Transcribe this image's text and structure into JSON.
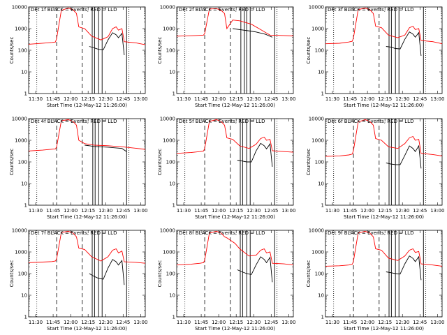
{
  "chart_data": {
    "type": "line",
    "xlabel": "Start Time (12-May-12 11:26:00)",
    "ylabel": "Counts/sec",
    "x_ticks": [
      "11:30",
      "11:45",
      "12:00",
      "12:15",
      "12:30",
      "12:45",
      "13:00"
    ],
    "x_tick_values": [
      30,
      45,
      60,
      75,
      90,
      105,
      120
    ],
    "xlim": [
      24,
      124
    ],
    "ylim": [
      1,
      10000
    ],
    "y_scale": "log",
    "y_ticks": [
      "1",
      "10",
      "100",
      "1000",
      "10000"
    ],
    "y_tick_values": [
      1,
      10,
      100,
      1000,
      10000
    ],
    "series_colors": {
      "events": "#000000",
      "lld": "#ff0000"
    },
    "panels": [
      {
        "title": "Det 1f BLACK = Events, RED = LLD",
        "dotted": [
          31,
          110
        ],
        "dashed": [
          48,
          70
        ],
        "solid": [
          78.5,
          80.5,
          84,
          87,
          108
        ],
        "lld": [
          [
            24,
            190
          ],
          [
            30,
            200
          ],
          [
            38,
            215
          ],
          [
            44,
            230
          ],
          [
            47,
            240
          ],
          [
            48,
            350
          ],
          [
            52,
            7000
          ],
          [
            58,
            9000
          ],
          [
            62,
            7500
          ],
          [
            65,
            5000
          ],
          [
            67,
            1200
          ],
          [
            72,
            1000
          ],
          [
            78,
            450
          ],
          [
            86,
            300
          ],
          [
            92,
            420
          ],
          [
            96,
            1000
          ],
          [
            99,
            1200
          ],
          [
            101,
            850
          ],
          [
            104,
            1000
          ],
          [
            106,
            250
          ],
          [
            116,
            220
          ],
          [
            124,
            180
          ]
        ],
        "events": [
          [
            76,
            150
          ],
          [
            80,
            130
          ],
          [
            84,
            110
          ],
          [
            88,
            105
          ],
          [
            92,
            300
          ],
          [
            96,
            650
          ],
          [
            99,
            520
          ],
          [
            101,
            380
          ],
          [
            104,
            600
          ],
          [
            106,
            60
          ]
        ]
      },
      {
        "title": "Det 2f BLACK = Events, RED = LLD",
        "dotted": [
          31,
          110
        ],
        "dashed": [
          48,
          70
        ],
        "solid": [
          79,
          82,
          84,
          87,
          108
        ],
        "lld": [
          [
            24,
            450
          ],
          [
            40,
            480
          ],
          [
            47,
            500
          ],
          [
            48,
            600
          ],
          [
            52,
            8000
          ],
          [
            58,
            8500
          ],
          [
            62,
            7000
          ],
          [
            65,
            5000
          ],
          [
            67,
            1000
          ],
          [
            72,
            2500
          ],
          [
            78,
            2300
          ],
          [
            88,
            1600
          ],
          [
            96,
            900
          ],
          [
            104,
            500
          ],
          [
            116,
            480
          ],
          [
            124,
            460
          ]
        ],
        "events": [
          [
            72,
            1000
          ],
          [
            78,
            900
          ],
          [
            85,
            800
          ],
          [
            92,
            700
          ],
          [
            100,
            550
          ],
          [
            106,
            400
          ]
        ]
      },
      {
        "title": "Det 3f BLACK = Events, RED = LLD",
        "dotted": [
          31,
          110
        ],
        "dashed": [
          48,
          70
        ],
        "solid": [
          78.5,
          80.5,
          84,
          87,
          108
        ],
        "lld": [
          [
            24,
            200
          ],
          [
            36,
            210
          ],
          [
            44,
            240
          ],
          [
            47,
            260
          ],
          [
            48,
            380
          ],
          [
            52,
            7500
          ],
          [
            58,
            9000
          ],
          [
            62,
            7500
          ],
          [
            65,
            5000
          ],
          [
            67,
            1300
          ],
          [
            72,
            1100
          ],
          [
            78,
            500
          ],
          [
            86,
            380
          ],
          [
            92,
            500
          ],
          [
            96,
            1100
          ],
          [
            99,
            1300
          ],
          [
            101,
            900
          ],
          [
            104,
            1000
          ],
          [
            106,
            280
          ],
          [
            116,
            250
          ],
          [
            124,
            200
          ]
        ],
        "events": [
          [
            76,
            150
          ],
          [
            80,
            140
          ],
          [
            84,
            120
          ],
          [
            88,
            115
          ],
          [
            92,
            320
          ],
          [
            96,
            700
          ],
          [
            99,
            550
          ],
          [
            101,
            400
          ],
          [
            104,
            650
          ],
          [
            106,
            55
          ]
        ]
      },
      {
        "title": "Det 4f BLACK = Events, RED = LLD",
        "dotted": [
          31,
          110
        ],
        "dashed": [
          48,
          70
        ],
        "solid": [
          79,
          81,
          84,
          87,
          108
        ],
        "lld": [
          [
            24,
            320
          ],
          [
            36,
            350
          ],
          [
            47,
            400
          ],
          [
            48,
            500
          ],
          [
            52,
            8000
          ],
          [
            58,
            9000
          ],
          [
            62,
            7500
          ],
          [
            65,
            5000
          ],
          [
            67,
            1000
          ],
          [
            72,
            700
          ],
          [
            80,
            600
          ],
          [
            92,
            560
          ],
          [
            104,
            500
          ],
          [
            116,
            430
          ],
          [
            124,
            380
          ]
        ],
        "events": [
          [
            72,
            600
          ],
          [
            80,
            520
          ],
          [
            92,
            480
          ],
          [
            104,
            420
          ],
          [
            108,
            300
          ]
        ]
      },
      {
        "title": "Det 5f BLACK = Events, RED = LLD",
        "dotted": [
          31,
          110
        ],
        "dashed": [
          48,
          70
        ],
        "solid": [
          78.5,
          80.5,
          84,
          87,
          108
        ],
        "lld": [
          [
            24,
            250
          ],
          [
            36,
            270
          ],
          [
            44,
            300
          ],
          [
            47,
            320
          ],
          [
            48,
            420
          ],
          [
            52,
            7500
          ],
          [
            58,
            9000
          ],
          [
            62,
            7500
          ],
          [
            65,
            5000
          ],
          [
            67,
            1300
          ],
          [
            72,
            1100
          ],
          [
            78,
            550
          ],
          [
            86,
            420
          ],
          [
            92,
            650
          ],
          [
            96,
            1200
          ],
          [
            99,
            1400
          ],
          [
            101,
            1000
          ],
          [
            104,
            1100
          ],
          [
            106,
            330
          ],
          [
            116,
            300
          ],
          [
            124,
            280
          ]
        ],
        "events": [
          [
            76,
            120
          ],
          [
            80,
            110
          ],
          [
            84,
            100
          ],
          [
            88,
            100
          ],
          [
            92,
            320
          ],
          [
            96,
            720
          ],
          [
            99,
            560
          ],
          [
            101,
            400
          ],
          [
            104,
            680
          ],
          [
            106,
            60
          ]
        ]
      },
      {
        "title": "Det 6f BLACK = Events, RED = LLD",
        "dotted": [
          31,
          110
        ],
        "dashed": [
          48,
          70
        ],
        "solid": [
          78.5,
          80.5,
          84,
          87,
          108
        ],
        "lld": [
          [
            24,
            180
          ],
          [
            36,
            190
          ],
          [
            44,
            210
          ],
          [
            47,
            230
          ],
          [
            48,
            340
          ],
          [
            52,
            7000
          ],
          [
            58,
            9000
          ],
          [
            62,
            7500
          ],
          [
            65,
            5000
          ],
          [
            67,
            1200
          ],
          [
            72,
            1000
          ],
          [
            78,
            500
          ],
          [
            86,
            420
          ],
          [
            92,
            700
          ],
          [
            96,
            1300
          ],
          [
            99,
            1500
          ],
          [
            101,
            1000
          ],
          [
            104,
            1100
          ],
          [
            106,
            250
          ],
          [
            116,
            220
          ],
          [
            124,
            190
          ]
        ],
        "events": [
          [
            76,
            90
          ],
          [
            80,
            80
          ],
          [
            84,
            75
          ],
          [
            88,
            75
          ],
          [
            92,
            200
          ],
          [
            96,
            550
          ],
          [
            99,
            420
          ],
          [
            101,
            300
          ],
          [
            104,
            550
          ],
          [
            106,
            50
          ]
        ]
      },
      {
        "title": "Det 7f BLACK = Events, RED = LLD",
        "dotted": [
          31,
          110
        ],
        "dashed": [
          48,
          70
        ],
        "solid": [
          78.5,
          80.5,
          84,
          87,
          108
        ],
        "lld": [
          [
            24,
            320
          ],
          [
            36,
            340
          ],
          [
            44,
            360
          ],
          [
            47,
            380
          ],
          [
            48,
            480
          ],
          [
            52,
            8000
          ],
          [
            58,
            9000
          ],
          [
            62,
            7500
          ],
          [
            65,
            5000
          ],
          [
            67,
            1500
          ],
          [
            72,
            1300
          ],
          [
            78,
            600
          ],
          [
            86,
            380
          ],
          [
            92,
            600
          ],
          [
            96,
            1200
          ],
          [
            99,
            1400
          ],
          [
            101,
            900
          ],
          [
            104,
            1100
          ],
          [
            106,
            350
          ],
          [
            116,
            330
          ],
          [
            124,
            300
          ]
        ],
        "events": [
          [
            76,
            100
          ],
          [
            80,
            75
          ],
          [
            84,
            60
          ],
          [
            88,
            55
          ],
          [
            92,
            180
          ],
          [
            96,
            450
          ],
          [
            99,
            350
          ],
          [
            101,
            250
          ],
          [
            104,
            400
          ],
          [
            106,
            30
          ]
        ]
      },
      {
        "title": "Det 8f BLACK = Events, RED = LLD",
        "dotted": [
          31,
          110
        ],
        "dashed": [
          48,
          70
        ],
        "solid": [
          78.5,
          80.5,
          84,
          87,
          108
        ],
        "lld": [
          [
            24,
            250
          ],
          [
            36,
            270
          ],
          [
            44,
            300
          ],
          [
            47,
            320
          ],
          [
            48,
            420
          ],
          [
            52,
            7500
          ],
          [
            58,
            9000
          ],
          [
            62,
            7500
          ],
          [
            65,
            5000
          ],
          [
            67,
            4500
          ],
          [
            70,
            3500
          ],
          [
            74,
            2500
          ],
          [
            78,
            1400
          ],
          [
            86,
            650
          ],
          [
            92,
            700
          ],
          [
            96,
            1200
          ],
          [
            99,
            1400
          ],
          [
            101,
            900
          ],
          [
            104,
            1000
          ],
          [
            106,
            300
          ],
          [
            116,
            280
          ],
          [
            124,
            250
          ]
        ],
        "events": [
          [
            76,
            150
          ],
          [
            80,
            120
          ],
          [
            84,
            100
          ],
          [
            88,
            90
          ],
          [
            92,
            250
          ],
          [
            96,
            600
          ],
          [
            99,
            450
          ],
          [
            101,
            320
          ],
          [
            104,
            560
          ],
          [
            106,
            40
          ]
        ]
      },
      {
        "title": "Det 9f BLACK = Events, RED = LLD",
        "dotted": [
          31,
          110
        ],
        "dashed": [
          48,
          70
        ],
        "solid": [
          78.5,
          80.5,
          84,
          87,
          108
        ],
        "lld": [
          [
            24,
            220
          ],
          [
            36,
            230
          ],
          [
            44,
            250
          ],
          [
            47,
            270
          ],
          [
            48,
            380
          ],
          [
            52,
            7500
          ],
          [
            58,
            9000
          ],
          [
            62,
            7500
          ],
          [
            65,
            5000
          ],
          [
            67,
            1400
          ],
          [
            72,
            1200
          ],
          [
            78,
            520
          ],
          [
            86,
            400
          ],
          [
            92,
            650
          ],
          [
            96,
            1200
          ],
          [
            99,
            1400
          ],
          [
            101,
            950
          ],
          [
            104,
            1050
          ],
          [
            106,
            280
          ],
          [
            116,
            250
          ],
          [
            124,
            220
          ]
        ],
        "events": [
          [
            76,
            120
          ],
          [
            80,
            110
          ],
          [
            84,
            100
          ],
          [
            88,
            95
          ],
          [
            92,
            280
          ],
          [
            96,
            650
          ],
          [
            99,
            500
          ],
          [
            101,
            360
          ],
          [
            104,
            600
          ],
          [
            106,
            50
          ]
        ]
      }
    ]
  }
}
